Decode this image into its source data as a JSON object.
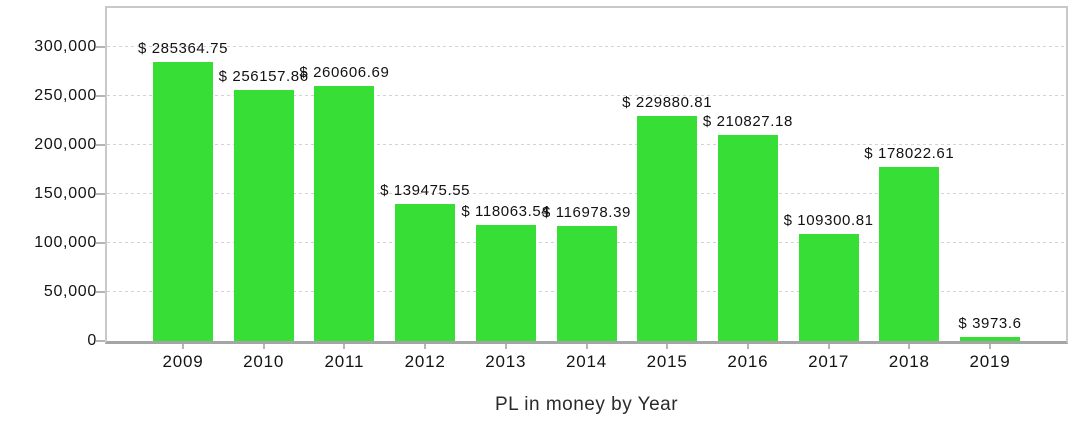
{
  "chart_data": {
    "type": "bar",
    "title": "PL in money by Year",
    "title_position": "bottom",
    "categories": [
      "2009",
      "2010",
      "2011",
      "2012",
      "2013",
      "2014",
      "2015",
      "2016",
      "2017",
      "2018",
      "2019"
    ],
    "values": [
      285364.75,
      256157.86,
      260606.69,
      139475.55,
      118063.54,
      116978.39,
      229880.81,
      210827.18,
      109300.81,
      178022.61,
      3973.6
    ],
    "bar_labels": [
      "$ 285364.75",
      "$ 256157.86",
      "$ 260606.69",
      "$ 139475.55",
      "$ 118063.54",
      "$ 116978.39",
      "$ 229880.81",
      "$ 210827.18",
      "$ 109300.81",
      "$ 178022.61",
      "$ 3973.6"
    ],
    "xlabel": "",
    "ylabel": "",
    "ylim": [
      0,
      340000
    ],
    "yticks": [
      0,
      50000,
      100000,
      150000,
      200000,
      250000,
      300000
    ],
    "ytick_labels": [
      "0",
      "50,000",
      "100,000",
      "150,000",
      "200,000",
      "250,000",
      "300,000"
    ],
    "grid": "horizontal-dashed",
    "legend": "none",
    "colors": {
      "bar": "#36de36",
      "grid": "#d2d2d2",
      "axis": "#a5a5a5",
      "border": "#c9c9c9",
      "text": "#141414"
    }
  }
}
